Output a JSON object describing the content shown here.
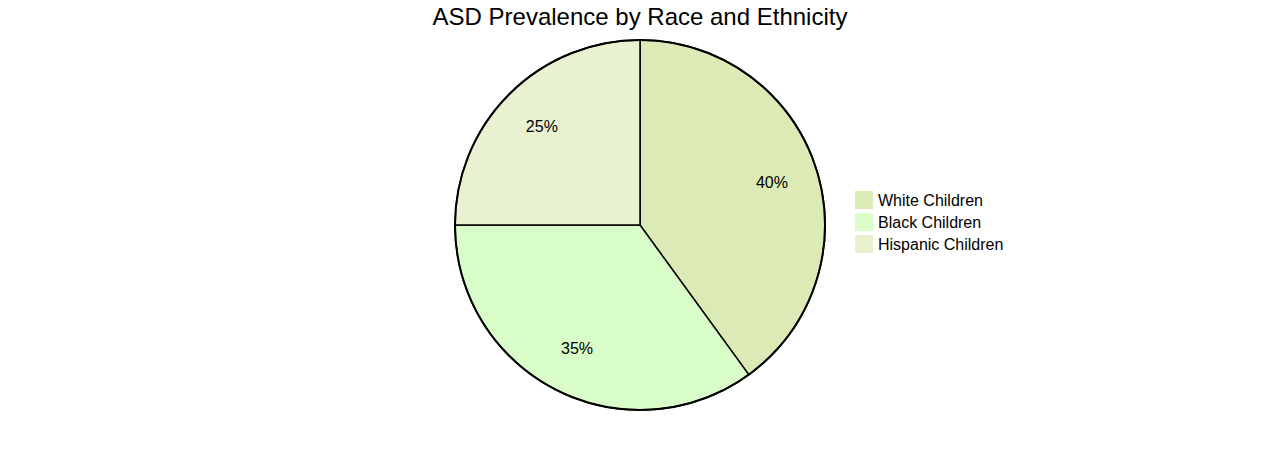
{
  "chart_data": {
    "type": "pie",
    "title": "ASD Prevalence by Race and Ethnicity",
    "categories": [
      "White Children",
      "Black Children",
      "Hispanic Children"
    ],
    "values": [
      40,
      35,
      25
    ],
    "value_labels": [
      "40%",
      "35%",
      "25%"
    ],
    "data_labels": true,
    "legend": "right",
    "colors": [
      "#dcebb5",
      "#d9fdc8",
      "#e8f2d1"
    ]
  }
}
